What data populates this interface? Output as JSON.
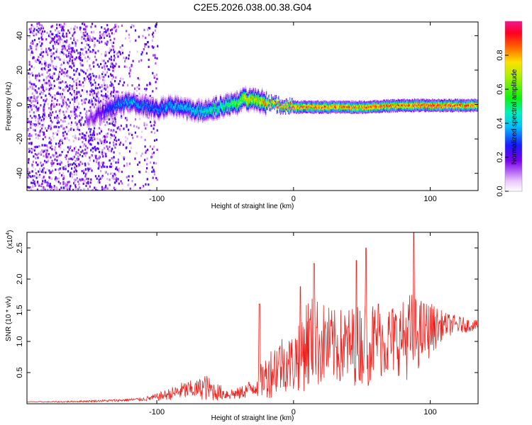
{
  "figure": {
    "title": "C2E5.2026.038.00.38.G04"
  },
  "colors": {
    "signal_line": "#e8231f",
    "frame": "#000000",
    "background": "#ffffff"
  },
  "chart_data": [
    {
      "type": "heatmap",
      "panel": "spectrogram",
      "title": "",
      "xlabel": "Height of straight line (km)",
      "ylabel": "Frequency (Hz)",
      "xlim": [
        -195,
        135
      ],
      "ylim": [
        -50,
        48
      ],
      "xticks": [
        -100,
        0,
        100
      ],
      "yticks": [
        -40,
        -20,
        0,
        20,
        40
      ],
      "colorbar": {
        "label": "Normalized spectral amplitude",
        "range": [
          0,
          1
        ],
        "ticks": [
          0.0,
          0.2,
          0.4,
          0.6,
          0.8
        ],
        "colormap": "rainbow (white-violet-blue-cyan-green-yellow-red-magenta)"
      },
      "ridge": {
        "x": [
          -150,
          -140,
          -130,
          -120,
          -110,
          -100,
          -90,
          -80,
          -70,
          -60,
          -50,
          -40,
          -35,
          -30,
          -20,
          -10,
          0,
          20,
          50,
          80,
          100,
          120,
          135
        ],
        "frequency": [
          -8,
          -4,
          0,
          2,
          0,
          -2,
          0,
          -2,
          -3,
          -2,
          0,
          2,
          4,
          3,
          2,
          0,
          -1,
          -1,
          -1,
          0,
          0,
          0,
          0
        ],
        "amplitude": [
          0.15,
          0.25,
          0.35,
          0.4,
          0.35,
          0.35,
          0.4,
          0.4,
          0.45,
          0.5,
          0.55,
          0.65,
          0.8,
          0.75,
          0.85,
          0.85,
          0.9,
          0.9,
          0.9,
          0.92,
          0.95,
          0.92,
          0.9
        ]
      },
      "noise_region": {
        "x_range": [
          -195,
          -130
        ],
        "amplitude": [
          0.05,
          0.25
        ],
        "extends_scattered_to": -100
      }
    },
    {
      "type": "line",
      "panel": "snr",
      "title": "",
      "xlabel": "Height of straight line (km)",
      "ylabel": "SNR (10 * v/v)",
      "y_multiplier_label": "(x10",
      "y_multiplier_exp": "4",
      "y_multiplier_close": ")",
      "xlim": [
        -195,
        135
      ],
      "ylim": [
        0,
        2.75
      ],
      "xticks": [
        -100,
        0,
        100
      ],
      "yticks": [
        0.5,
        1.0,
        1.5,
        2.0,
        2.5
      ],
      "ytick_labels": [
        "0.5",
        "1.0",
        "1.5",
        "2.0",
        "2.5"
      ],
      "series": [
        {
          "name": "",
          "x": [
            -195,
            -170,
            -150,
            -130,
            -110,
            -100,
            -90,
            -80,
            -70,
            -65,
            -60,
            -50,
            -40,
            -30,
            -20,
            -15,
            -10,
            -5,
            0,
            5,
            10,
            15,
            20,
            30,
            40,
            50,
            55,
            60,
            70,
            80,
            85,
            90,
            100,
            110,
            120,
            135
          ],
          "y_baseline": [
            0.03,
            0.03,
            0.04,
            0.05,
            0.07,
            0.1,
            0.15,
            0.2,
            0.22,
            0.25,
            0.2,
            0.15,
            0.15,
            0.25,
            0.4,
            0.5,
            0.6,
            0.6,
            0.6,
            0.8,
            0.9,
            0.9,
            0.9,
            0.85,
            0.85,
            0.9,
            0.95,
            0.95,
            0.95,
            1.0,
            1.0,
            1.05,
            1.15,
            1.25,
            1.25,
            1.25
          ],
          "y_spread": [
            0.01,
            0.02,
            0.03,
            0.04,
            0.06,
            0.12,
            0.2,
            0.3,
            0.3,
            0.45,
            0.35,
            0.2,
            0.2,
            0.3,
            0.7,
            0.9,
            1.0,
            0.9,
            1.0,
            1.3,
            1.6,
            1.5,
            1.4,
            1.2,
            1.3,
            1.3,
            1.5,
            1.2,
            1.2,
            1.2,
            1.5,
            1.2,
            0.9,
            0.4,
            0.3,
            0.15
          ],
          "peaks": [
            {
              "x": -25,
              "y": 1.6
            },
            {
              "x": 5,
              "y": 1.88
            },
            {
              "x": 15,
              "y": 2.25
            },
            {
              "x": 46,
              "y": 2.3
            },
            {
              "x": 53,
              "y": 2.5
            },
            {
              "x": 88,
              "y": 2.75
            },
            {
              "x": 62,
              "y": 1.6
            }
          ]
        }
      ]
    }
  ]
}
